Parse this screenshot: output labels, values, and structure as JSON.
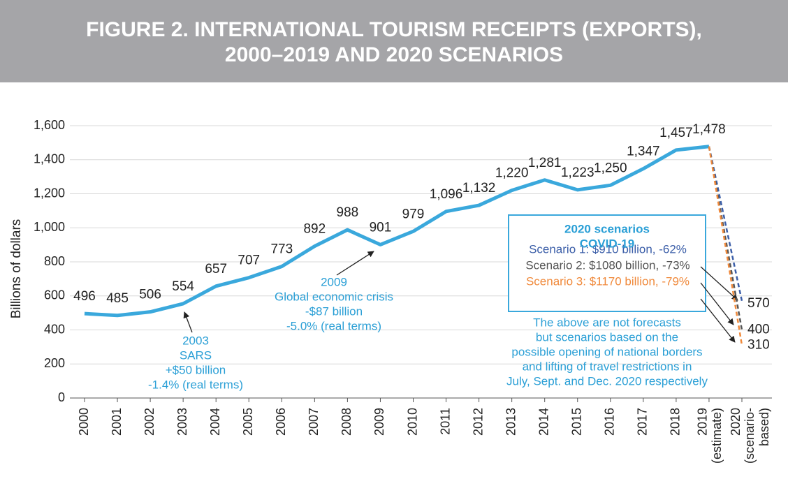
{
  "chart_data": {
    "type": "line",
    "title_lines": [
      "FIGURE 2. INTERNATIONAL TOURISM RECEIPTS (EXPORTS),",
      "2000–2019 AND 2020 SCENARIOS"
    ],
    "ylabel": "Billions of dollars",
    "categories": [
      "2000",
      "2001",
      "2002",
      "2003",
      "2004",
      "2005",
      "2006",
      "2007",
      "2008",
      "2009",
      "2010",
      "2011",
      "2012",
      "2013",
      "2014",
      "2015",
      "2016",
      "2017",
      "2018",
      "2019",
      "2020"
    ],
    "category_notes": {
      "19": "(estimate)",
      "20": "(scenario-based)"
    },
    "ylim": [
      0,
      1600
    ],
    "yticks": [
      0,
      200,
      400,
      600,
      800,
      {
        "value": 1000,
        "label": "1,000"
      },
      {
        "value": 1200,
        "label": "1,200"
      },
      {
        "value": 1400,
        "label": "1,400"
      },
      {
        "value": 1600,
        "label": "1,600"
      }
    ],
    "grid": true,
    "series": [
      {
        "name": "International tourism receipts",
        "color": "#3aa8dc",
        "dashed": false,
        "values": [
          496,
          485,
          506,
          554,
          657,
          707,
          773,
          892,
          988,
          901,
          979,
          1096,
          1132,
          1220,
          1281,
          1223,
          1250,
          1347,
          1457,
          1478,
          null
        ],
        "value_labels": [
          "496",
          "485",
          "506",
          "554",
          "657",
          "707",
          "773",
          "892",
          "988",
          "901",
          "979",
          "1,096",
          "1,132",
          "1,220",
          "1,281",
          "1,223",
          "1,250",
          "1,347",
          "1,457",
          "1,478",
          null
        ]
      },
      {
        "name": "Scenario 1: $910 billion, -62%",
        "color": "#3b5ea8",
        "dashed": true,
        "values": [
          null,
          null,
          null,
          null,
          null,
          null,
          null,
          null,
          null,
          null,
          null,
          null,
          null,
          null,
          null,
          null,
          null,
          null,
          null,
          1478,
          570
        ]
      },
      {
        "name": "Scenario 2: $1080 billion, -73%",
        "color": "#555555",
        "dashed": true,
        "values": [
          null,
          null,
          null,
          null,
          null,
          null,
          null,
          null,
          null,
          null,
          null,
          null,
          null,
          null,
          null,
          null,
          null,
          null,
          null,
          1478,
          400
        ]
      },
      {
        "name": "Scenario 3: $1170 billion, -79%",
        "color": "#f08a3c",
        "dashed": true,
        "values": [
          null,
          null,
          null,
          null,
          null,
          null,
          null,
          null,
          null,
          null,
          null,
          null,
          null,
          null,
          null,
          null,
          null,
          null,
          null,
          1478,
          310
        ]
      }
    ],
    "annotations": {
      "sars": [
        "2003",
        "SARS",
        "+$50 billion",
        "-1.4% (real terms)"
      ],
      "crisis": [
        "2009",
        "Global economic crisis",
        "-$87 billion",
        "-5.0% (real terms)"
      ],
      "box_title": [
        "2020 scenarios",
        "COVID-19"
      ],
      "note": [
        "The above are not forecasts",
        "but scenarios based on the",
        "possible opening of national borders",
        "and lifting of travel restrictions in",
        "July, Sept. and Dec. 2020 respectively"
      ]
    }
  }
}
